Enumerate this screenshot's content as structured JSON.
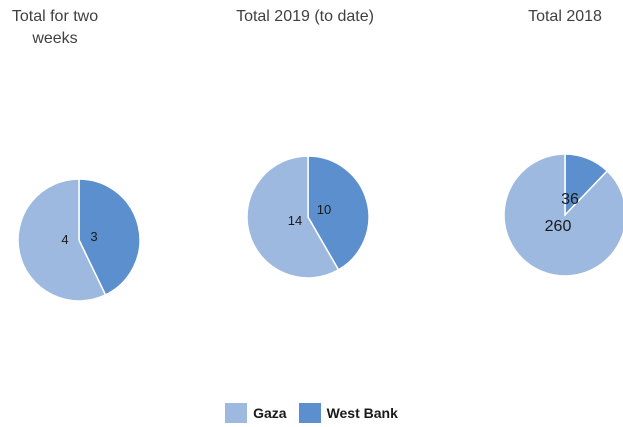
{
  "colors": {
    "gaza": "#9db9df",
    "west_bank": "#5b8fcd"
  },
  "chart_data": [
    {
      "type": "pie",
      "title": "Total for two weeks",
      "slices": [
        {
          "label": "Gaza",
          "value": 4
        },
        {
          "label": "West Bank",
          "value": 3
        }
      ]
    },
    {
      "type": "pie",
      "title": "Total 2019 (to date)",
      "slices": [
        {
          "label": "Gaza",
          "value": 14
        },
        {
          "label": "West Bank",
          "value": 10
        }
      ]
    },
    {
      "type": "pie",
      "title": "Total 2018",
      "slices": [
        {
          "label": "Gaza",
          "value": 260
        },
        {
          "label": "West Bank",
          "value": 36
        }
      ]
    }
  ],
  "legend": {
    "position": "bottom",
    "items": [
      {
        "label": "Gaza"
      },
      {
        "label": "West Bank"
      }
    ]
  }
}
